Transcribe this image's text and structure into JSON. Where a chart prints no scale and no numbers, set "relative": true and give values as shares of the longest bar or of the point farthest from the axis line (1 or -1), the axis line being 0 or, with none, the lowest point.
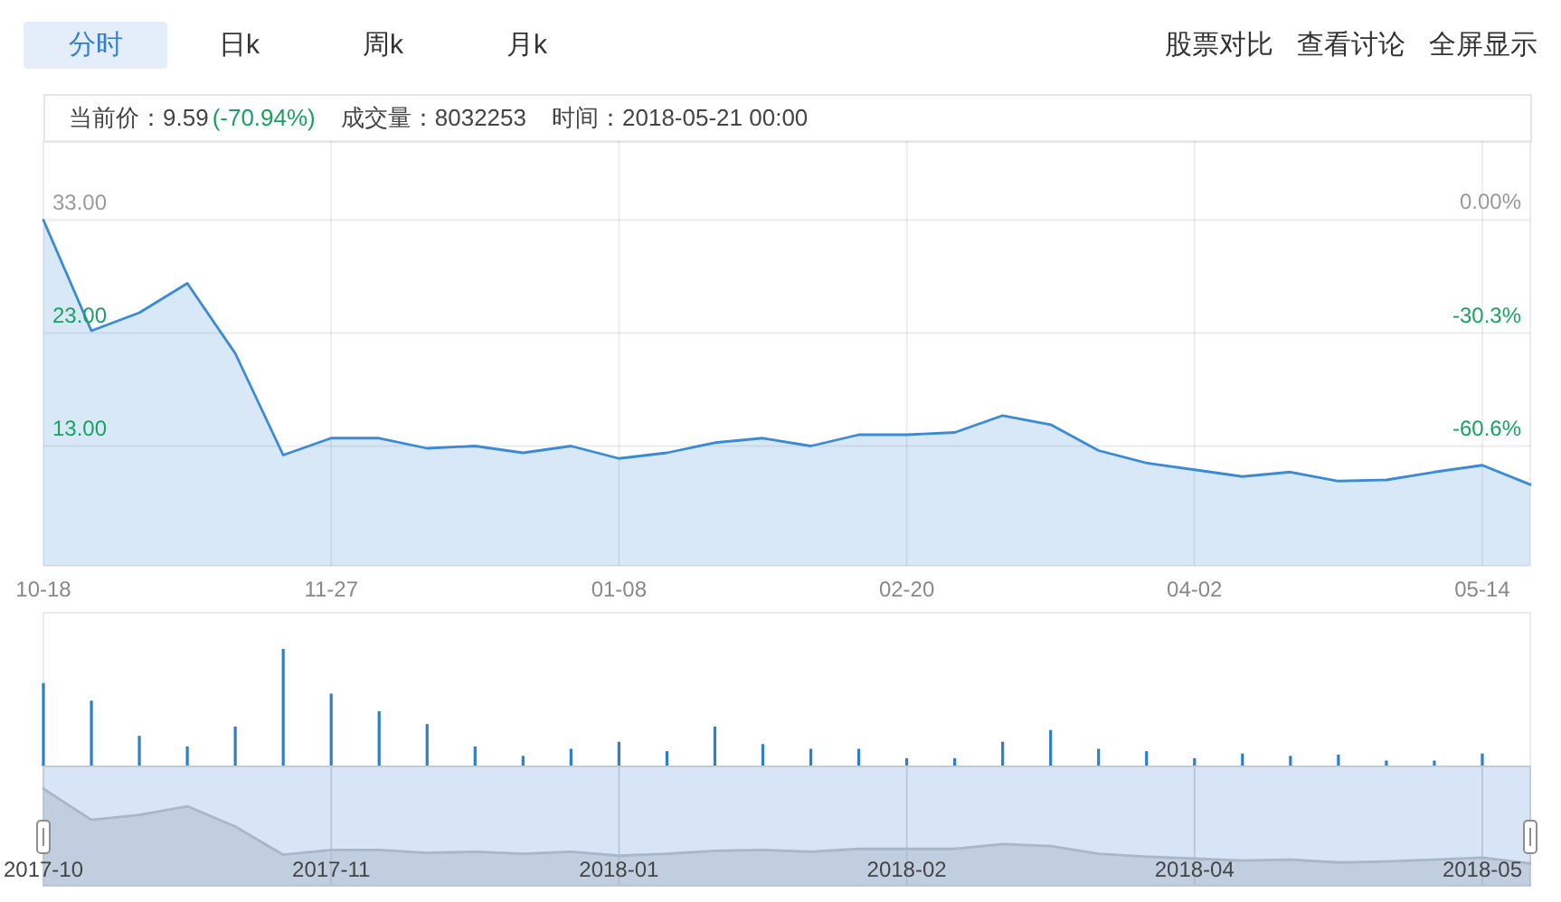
{
  "chart_data": [
    {
      "type": "other",
      "annotations": [
        "分时",
        "日k",
        "周k",
        "月k",
        "股票对比",
        "查看讨论",
        "全屏显示"
      ]
    },
    {
      "type": "area",
      "categories": [
        "10-18",
        null,
        null,
        null,
        null,
        null,
        "11-27",
        null,
        null,
        null,
        null,
        null,
        "01-08",
        null,
        null,
        null,
        null,
        null,
        "02-20",
        null,
        null,
        null,
        null,
        null,
        "04-02",
        null,
        null,
        null,
        null,
        null,
        "05-14",
        null
      ],
      "values": [
        33.0,
        23.2,
        24.8,
        27.4,
        21.2,
        12.2,
        13.7,
        13.7,
        12.8,
        13.0,
        12.4,
        13.0,
        11.9,
        12.4,
        13.3,
        13.7,
        13.0,
        14.0,
        14.0,
        14.2,
        15.7,
        14.9,
        12.6,
        11.5,
        10.9,
        10.3,
        10.7,
        9.9,
        10.0,
        10.7,
        11.3,
        9.59
      ],
      "color": "#3a8ad8",
      "ylim": [
        2.4,
        40
      ],
      "yticks": [
        {
          "value": 33,
          "label": "33.00"
        },
        {
          "value": 23,
          "label": "23.00"
        },
        {
          "value": 13,
          "label": "13.00"
        }
      ],
      "y2lim": [
        -92.7,
        21.2
      ],
      "y2ticks": [
        {
          "value": 0,
          "label": "0.00%"
        },
        {
          "value": -30.3,
          "label": "-30.3%"
        },
        {
          "value": -60.6,
          "label": "-60.6%"
        }
      ],
      "grid": true,
      "annotations": [
        "当前价：9.59",
        "(-70.94%)",
        "成交量：8032253",
        "时间：2018-05-21 00:00"
      ]
    },
    {
      "type": "bar",
      "relative": true,
      "categories": [
        null,
        null,
        null,
        null,
        null,
        null,
        null,
        null,
        null,
        null,
        null,
        null,
        null,
        null,
        null,
        null,
        null,
        null,
        null,
        null,
        null,
        null,
        null,
        null,
        null,
        null,
        null,
        null,
        null,
        null,
        null,
        null
      ],
      "values": [
        0.71,
        0.56,
        0.26,
        0.17,
        0.34,
        1,
        0.62,
        0.47,
        0.36,
        0.17,
        0.09,
        0.15,
        0.21,
        0.13,
        0.34,
        0.19,
        0.15,
        0.15,
        0.07,
        0.07,
        0.21,
        0.31,
        0.15,
        0.13,
        0.07,
        0.11,
        0.09,
        0.1,
        0.05,
        0.05,
        0.11,
        null
      ],
      "color": "#2f7fc8"
    },
    {
      "type": "area",
      "relative": true,
      "categories": [
        "2017-10",
        null,
        null,
        null,
        null,
        null,
        "2017-11",
        null,
        null,
        null,
        null,
        null,
        "2018-01",
        null,
        null,
        null,
        null,
        null,
        "2018-02",
        null,
        null,
        null,
        null,
        null,
        "2018-04",
        null,
        null,
        null,
        null,
        null,
        "2018-05",
        null
      ],
      "values": [
        1,
        0.68,
        0.73,
        0.82,
        0.61,
        0.32,
        0.37,
        0.37,
        0.34,
        0.35,
        0.33,
        0.35,
        0.31,
        0.33,
        0.36,
        0.37,
        0.35,
        0.38,
        0.38,
        0.38,
        0.43,
        0.41,
        0.33,
        0.3,
        0.28,
        0.26,
        0.27,
        0.24,
        0.25,
        0.27,
        0.29,
        0.23
      ],
      "color": "#a9b7c8",
      "grid": "x"
    }
  ]
}
